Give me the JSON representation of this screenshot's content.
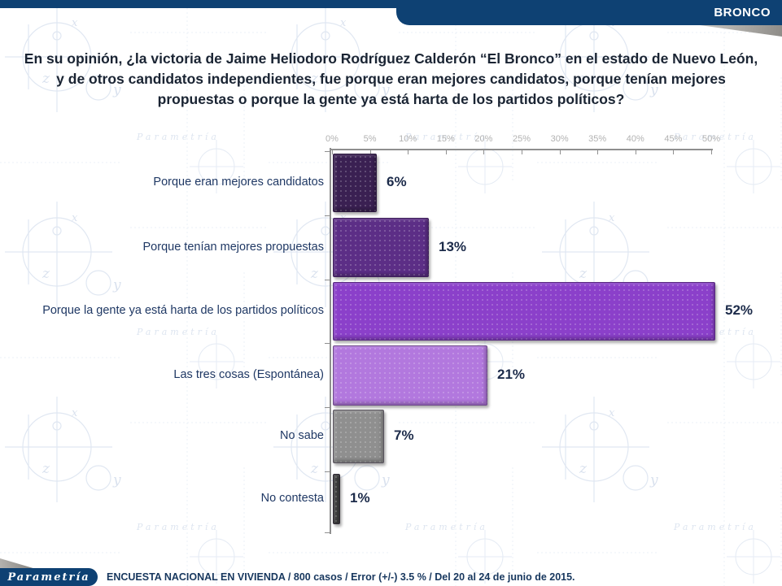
{
  "header": {
    "tab_label": "BRONCO"
  },
  "title": {
    "text": "En su opinión, ¿la victoria de Jaime Heliodoro Rodríguez Calderón “El Bronco” en el estado de Nuevo León, y de otros candidatos independientes, fue porque eran mejores candidatos, porque tenían mejores propuestas o porque la gente ya está harta de los partidos políticos?"
  },
  "chart_data": {
    "type": "bar",
    "orientation": "horizontal",
    "title": "",
    "xlabel": "",
    "ylabel": "",
    "categories": [
      "Porque eran mejores candidatos",
      "Porque tenían mejores propuestas",
      "Porque la gente ya está harta de los partidos políticos",
      "Las tres cosas (Espontánea)",
      "No sabe",
      "No contesta"
    ],
    "values": [
      6,
      13,
      52,
      21,
      7,
      1
    ],
    "value_labels": [
      "6%",
      "13%",
      "52%",
      "21%",
      "7%",
      "1%"
    ],
    "bar_colors": [
      "#3a2052",
      "#5c2e86",
      "#8b40ca",
      "#b278de",
      "#8f8f8f",
      "#3f3f3f"
    ],
    "axis": {
      "position": "top",
      "min": 0,
      "max": 50,
      "tick_labels": [
        "0%",
        "5%",
        "10%",
        "15%",
        "20%",
        "25%",
        "30%",
        "35%",
        "40%",
        "45%",
        "50%"
      ],
      "grid": false
    },
    "legend": null
  },
  "footer": {
    "logo_text": "Parametría",
    "note": "ENCUESTA NACIONAL EN VIVIENDA / 800 casos / Error (+/-) 3.5 % / Del 20 al 24 de junio de 2015."
  },
  "colors": {
    "brand_navy": "#0e4173",
    "title_text": "#1a2433",
    "category_text": "#1f3864",
    "value_text": "#1c2b4a",
    "tick_text": "#b2b2b2",
    "watermark_blue": "#c7d4e7"
  }
}
